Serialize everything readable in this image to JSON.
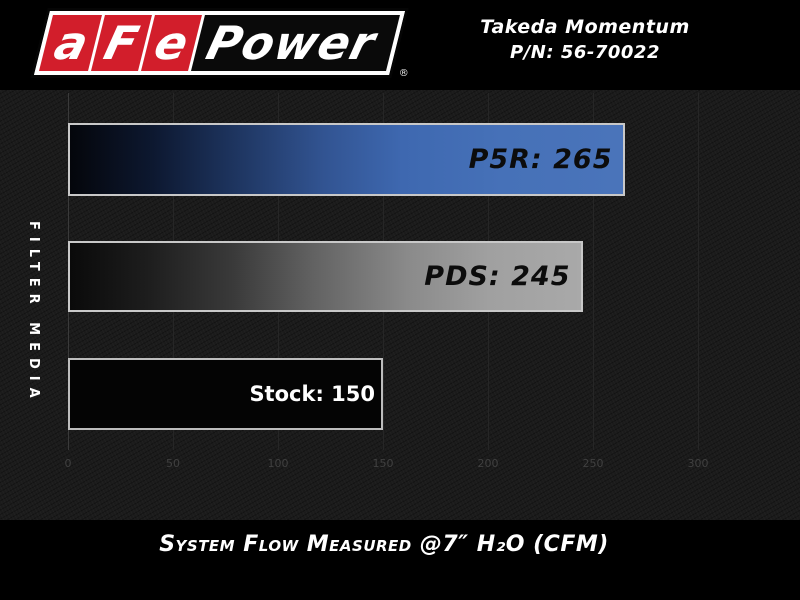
{
  "header": {
    "logo": {
      "letters": [
        "a",
        "F",
        "e"
      ],
      "power": "Power",
      "registered": "®",
      "brand_red": "#d21e2b"
    },
    "product": "Takeda Momentum",
    "part_number": "P/N: 56-70022"
  },
  "chart_data": {
    "type": "bar",
    "orientation": "horizontal",
    "title": "System Flow Measured @7″ H₂O (CFM)",
    "ylabel": "FILTER MEDIA",
    "xlabel": "",
    "categories": [
      "P5R",
      "PDS",
      "Stock"
    ],
    "values": [
      265,
      245,
      150
    ],
    "bar_labels": [
      "P5R: 265",
      "PDS: 245",
      "Stock: 150"
    ],
    "x_ticks": [
      0,
      50,
      100,
      150,
      200,
      250,
      300
    ],
    "xlim": [
      0,
      320
    ],
    "grid": true,
    "legend": "none",
    "bar_styles": [
      "blue-gradient",
      "silver-gradient",
      "black"
    ],
    "accent_blue": "#4a74ba",
    "accent_silver": "#a9a9a9",
    "bar_border": "#c8c8c8"
  }
}
